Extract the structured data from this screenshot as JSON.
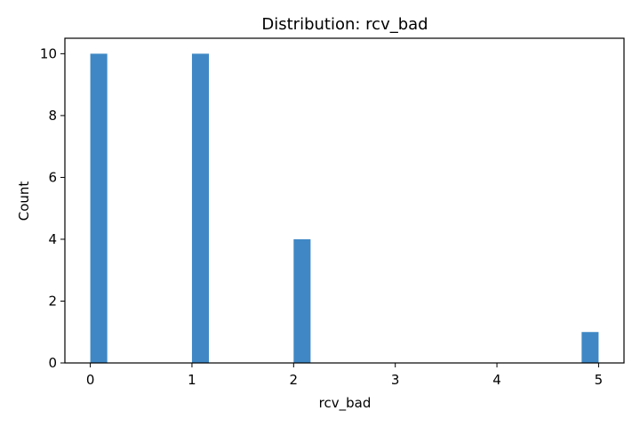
{
  "chart_data": {
    "type": "bar",
    "title": "Distribution: rcv_bad",
    "xlabel": "rcv_bad",
    "ylabel": "Count",
    "bars": [
      {
        "x_start": 0.0,
        "x_end": 0.1667,
        "value": 10
      },
      {
        "x_start": 1.0,
        "x_end": 1.1667,
        "value": 10
      },
      {
        "x_start": 2.0,
        "x_end": 2.1667,
        "value": 4
      },
      {
        "x_start": 4.8333,
        "x_end": 5.0,
        "value": 1
      }
    ],
    "xlim": [
      -0.25,
      5.25
    ],
    "ylim": [
      0,
      10.5
    ],
    "xticks": [
      "0",
      "1",
      "2",
      "3",
      "4",
      "5"
    ],
    "yticks": [
      "0",
      "2",
      "4",
      "6",
      "8",
      "10"
    ],
    "grid": false,
    "bar_color": "#3f88c5"
  }
}
